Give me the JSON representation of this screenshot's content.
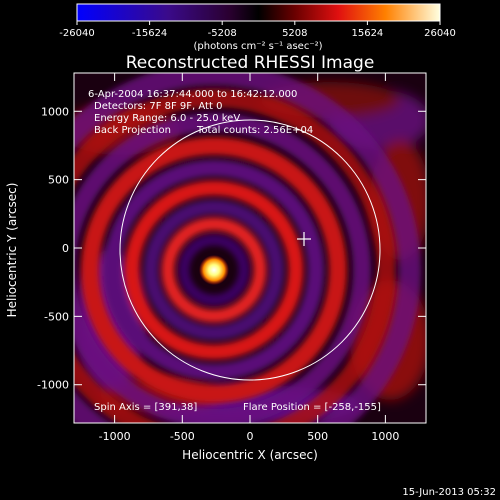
{
  "chart_data": {
    "type": "heatmap",
    "title": "Reconstructed RHESSI Image",
    "xlabel": "Heliocentric X (arcsec)",
    "ylabel": "Heliocentric Y (arcsec)",
    "xlim": [
      -1300,
      1300
    ],
    "ylim": [
      -1280,
      1280
    ],
    "xticks": [
      -1000,
      -500,
      0,
      500,
      1000
    ],
    "yticks": [
      1000,
      500,
      0,
      -500,
      -1000
    ],
    "colorbar": {
      "ticks": [
        "-26040",
        "-15624",
        "-5208",
        "5208",
        "15624",
        "26040"
      ],
      "range": [
        -26040,
        26040
      ],
      "units": "(photons cm⁻² s⁻¹ asec⁻²)"
    },
    "annotations": {
      "time_range": "6-Apr-2004 16:37:44.000 to 16:42:12.000",
      "detectors": "Detectors: 7F 8F 9F, Att 0",
      "energy_range": "Energy Range: 6.0 - 25.0 keV",
      "method": "Back Projection",
      "total_counts": "Total counts: 2.56E+04",
      "spin_axis": "Spin Axis = [391,38]",
      "flare_position": "Flare Position = [-258,-155]"
    },
    "source_center": [
      -258,
      -155
    ],
    "spin_axis_point": [
      391,
      38
    ],
    "solar_limb_radius": 960,
    "timestamp": "15-Jun-2013 05:32"
  }
}
